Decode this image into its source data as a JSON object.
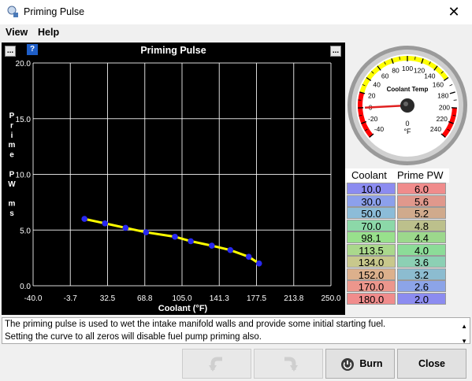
{
  "window": {
    "title": "Priming Pulse",
    "close_glyph": "✕"
  },
  "menu": {
    "items": [
      "View",
      "Help"
    ]
  },
  "chart_data": {
    "type": "line",
    "title": "Priming Pulse",
    "xlabel": "Coolant  (°F)",
    "ylabel": "Prime PW ms",
    "xlim": [
      -40.0,
      250.0
    ],
    "ylim": [
      0.0,
      20.0
    ],
    "x_ticks": [
      "-40.0",
      "-3.7",
      "32.5",
      "68.8",
      "105.0",
      "141.3",
      "177.5",
      "213.8",
      "250.0"
    ],
    "y_ticks": [
      "0.0",
      "5.0",
      "10.0",
      "15.0",
      "20.0"
    ],
    "x": [
      10.0,
      30.0,
      50.0,
      70.0,
      98.1,
      113.5,
      134.0,
      152.0,
      170.0,
      180.0
    ],
    "y": [
      6.0,
      5.6,
      5.2,
      4.8,
      4.4,
      4.0,
      3.6,
      3.2,
      2.6,
      2.0
    ],
    "grid": true,
    "colors": {
      "line": "#ffff00",
      "points": "#2828f0",
      "grid": "#ffffff",
      "background": "#000000"
    }
  },
  "gauge": {
    "title": "Coolant Temp",
    "units": "°F",
    "value": 0,
    "value_text": "0",
    "min": -40,
    "max": 240,
    "labels": [
      "-40",
      "-20",
      "0",
      "20",
      "40",
      "60",
      "80",
      "100",
      "120",
      "140",
      "160",
      "180",
      "200",
      "220",
      "240"
    ],
    "warn_low_color": "#ffff00",
    "danger_color": "#ff0000",
    "needle_color": "#e02020"
  },
  "table": {
    "headers": [
      "Coolant",
      "Prime PW"
    ],
    "rows": [
      {
        "coolant": "10.0",
        "pw": "6.0",
        "c_color": "#8c8cf0",
        "p_color": "#f08c8c"
      },
      {
        "coolant": "30.0",
        "pw": "5.6",
        "c_color": "#8ca0ec",
        "p_color": "#e0988c"
      },
      {
        "coolant": "50.0",
        "pw": "5.2",
        "c_color": "#8cbcd8",
        "p_color": "#d0aa8c"
      },
      {
        "coolant": "70.0",
        "pw": "4.8",
        "c_color": "#8cd8a8",
        "p_color": "#bcc08c"
      },
      {
        "coolant": "98.1",
        "pw": "4.4",
        "c_color": "#98e08c",
        "p_color": "#9cd88c"
      },
      {
        "coolant": "113.5",
        "pw": "4.0",
        "c_color": "#aad88c",
        "p_color": "#8cdc98"
      },
      {
        "coolant": "134.0",
        "pw": "3.6",
        "c_color": "#c8c88c",
        "p_color": "#8cd0b4"
      },
      {
        "coolant": "152.0",
        "pw": "3.2",
        "c_color": "#dcb08c",
        "p_color": "#8cbcd0"
      },
      {
        "coolant": "170.0",
        "pw": "2.6",
        "c_color": "#ec968c",
        "p_color": "#8ca4e8"
      },
      {
        "coolant": "180.0",
        "pw": "2.0",
        "c_color": "#f08c8c",
        "p_color": "#8c8cf0"
      }
    ]
  },
  "description": {
    "line1": "The priming pulse is used to wet the intake manifold walls and provide some initial starting fuel.",
    "line2": "Setting the curve to all zeros will disable fuel pump priming also."
  },
  "buttons": {
    "undo_icon": "undo-icon",
    "redo_icon": "redo-icon",
    "burn": "Burn",
    "close": "Close"
  },
  "chart_buttons": {
    "left": "...",
    "help": "?",
    "right": "..."
  }
}
